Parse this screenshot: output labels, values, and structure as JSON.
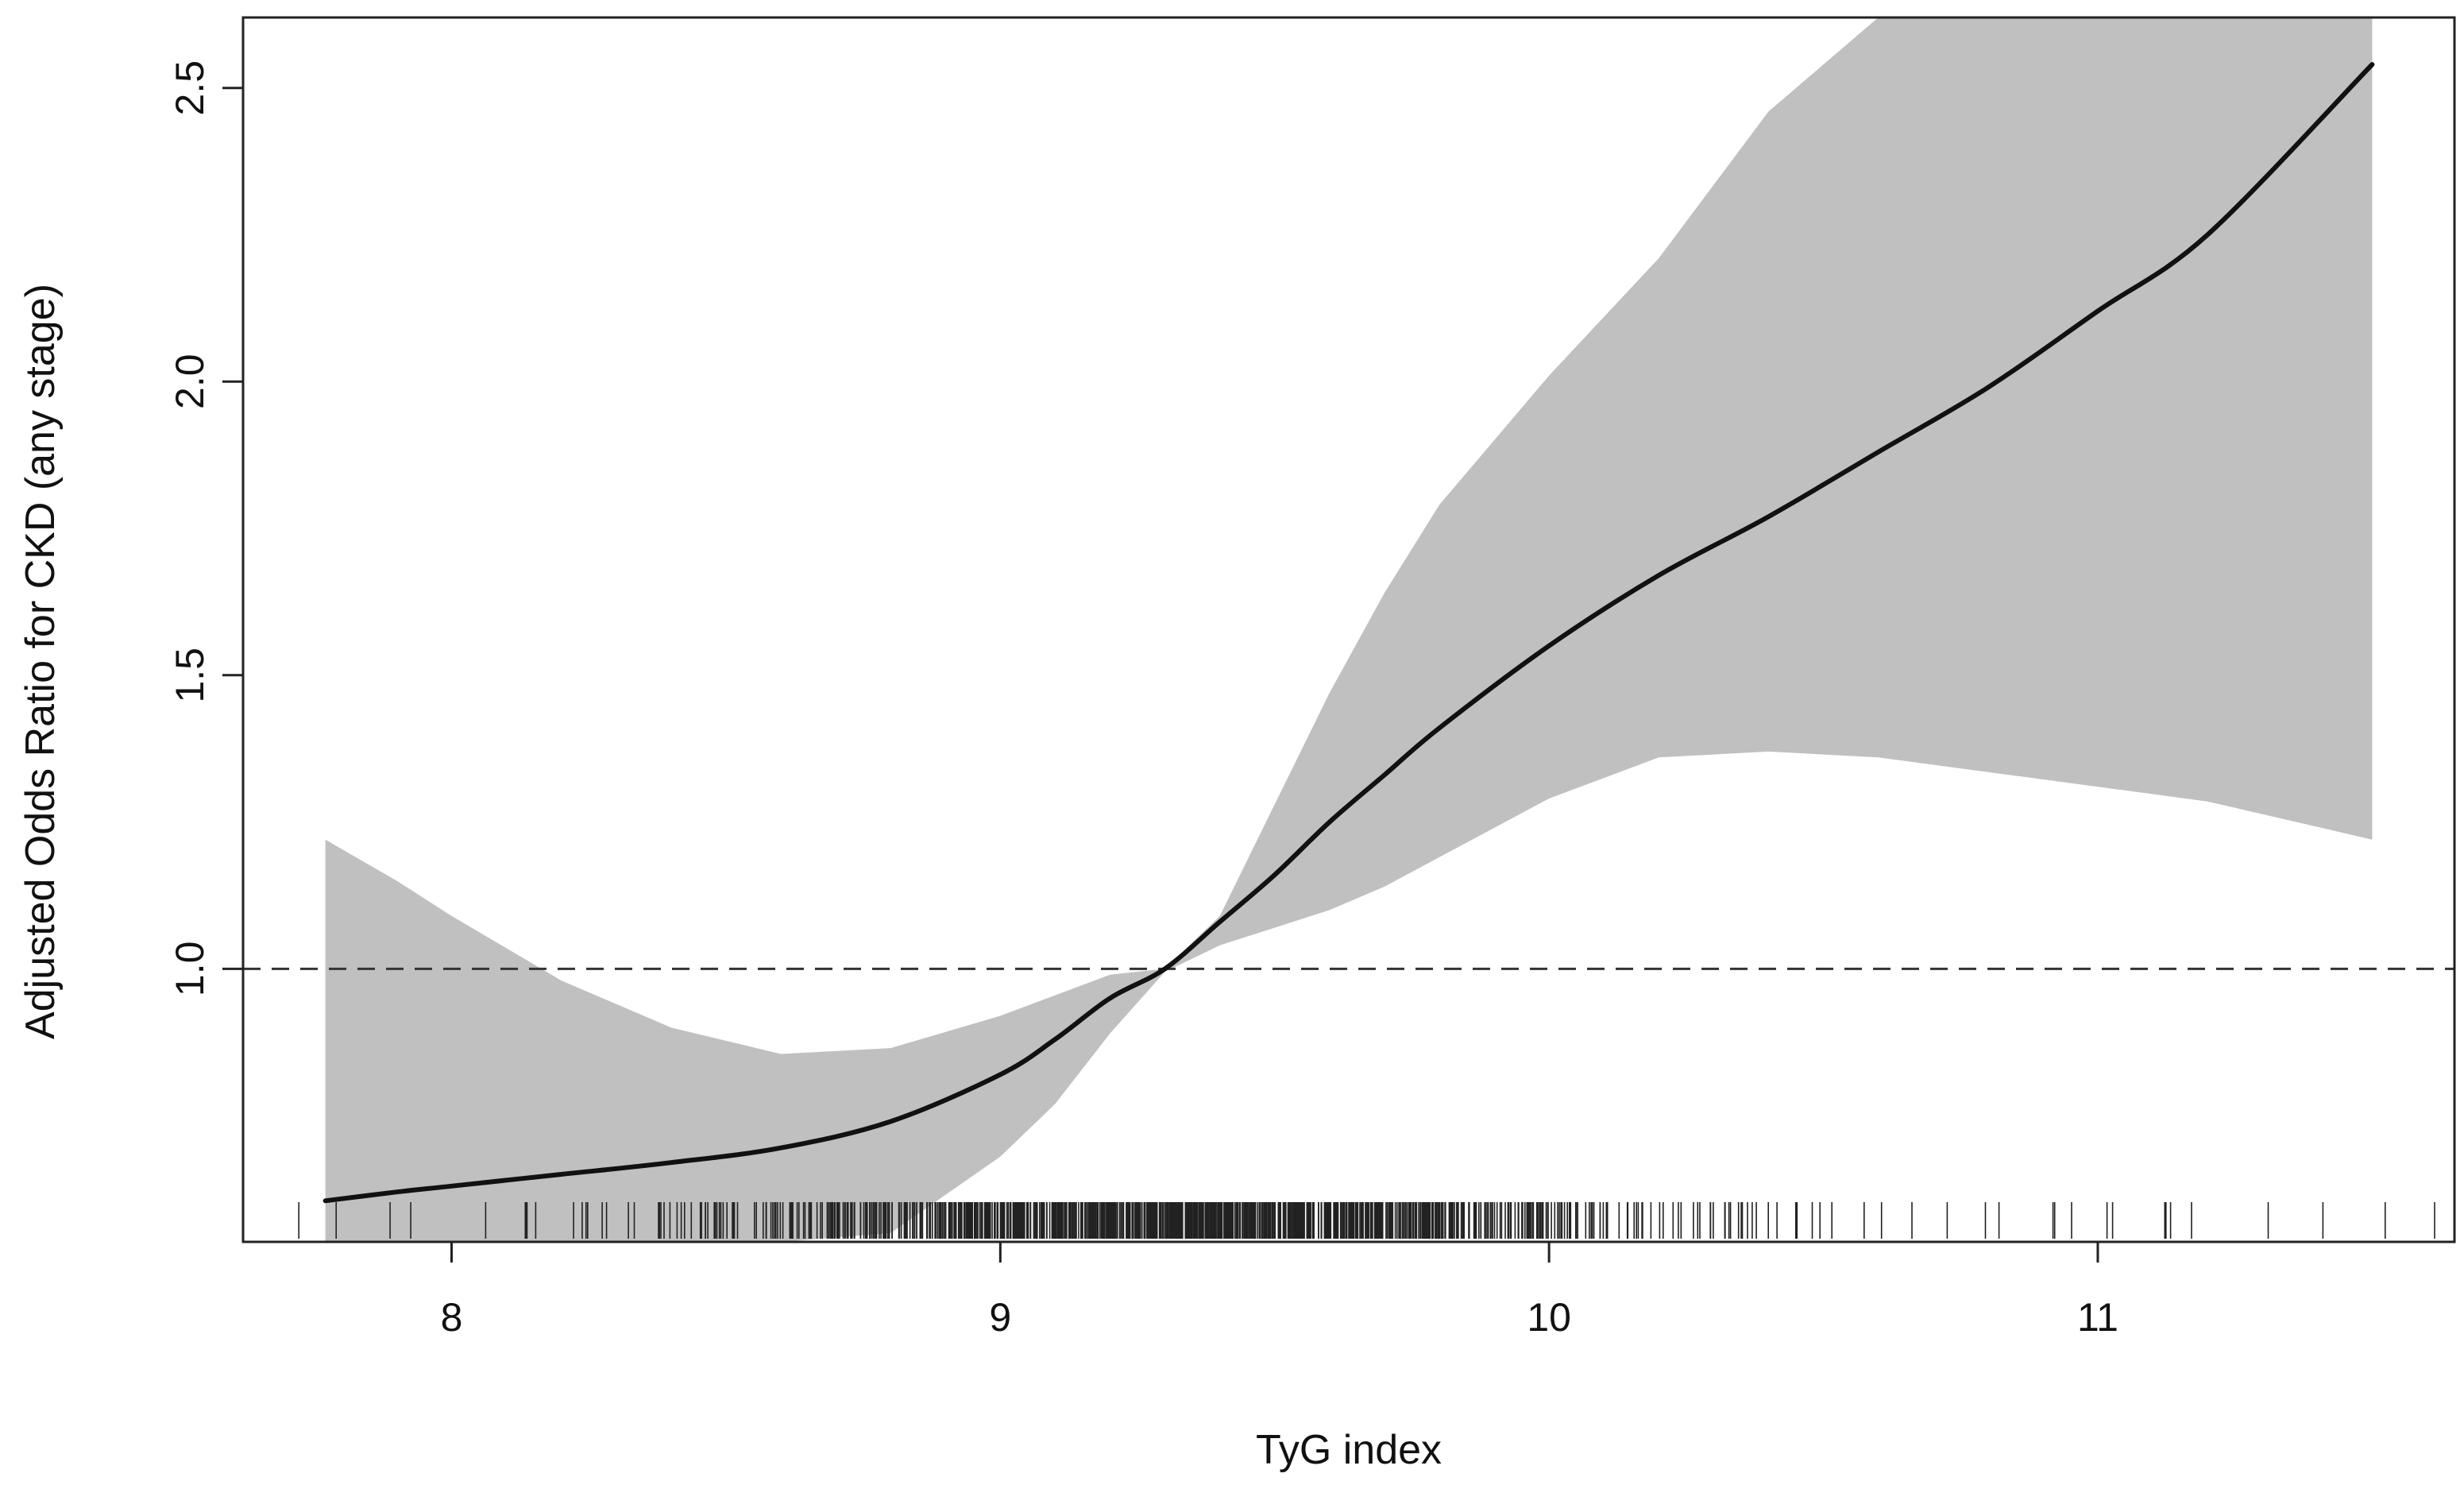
{
  "chart_data": {
    "type": "line",
    "xlabel": "TyG index",
    "ylabel": "Adjusted Odds Ratio for CKD (any stage)",
    "xlim": [
      7.62,
      11.65
    ],
    "ylim": [
      0.535,
      2.62
    ],
    "x_ticks": [
      8,
      9,
      10,
      11
    ],
    "y_ticks": [
      1.0,
      1.5,
      2.0,
      2.5
    ],
    "x_tick_labels": [
      "8",
      "9",
      "10",
      "11"
    ],
    "y_tick_labels": [
      "1.0",
      "1.5",
      "2.0",
      "2.5"
    ],
    "reference_line": {
      "y": 1.0,
      "style": "dashed"
    },
    "series": [
      {
        "x": [
          7.77,
          7.9,
          8.0,
          8.2,
          8.4,
          8.6,
          8.8,
          9.0,
          9.1,
          9.2,
          9.3,
          9.4,
          9.5,
          9.6,
          9.7,
          9.8,
          10.0,
          10.2,
          10.4,
          10.6,
          10.8,
          11.0,
          11.2,
          11.5
        ],
        "values": [
          0.605,
          0.62,
          0.63,
          0.65,
          0.67,
          0.695,
          0.74,
          0.82,
          0.88,
          0.95,
          1.0,
          1.08,
          1.16,
          1.25,
          1.33,
          1.41,
          1.55,
          1.67,
          1.77,
          1.88,
          1.99,
          2.12,
          2.25,
          2.54
        ]
      }
    ],
    "confidence_band": {
      "x": [
        7.77,
        7.9,
        8.0,
        8.2,
        8.4,
        8.6,
        8.8,
        9.0,
        9.1,
        9.2,
        9.3,
        9.4,
        9.5,
        9.6,
        9.7,
        9.8,
        10.0,
        10.2,
        10.4,
        10.6,
        10.8,
        11.0,
        11.2,
        11.5
      ],
      "upper": [
        1.22,
        1.15,
        1.09,
        0.98,
        0.9,
        0.855,
        0.865,
        0.92,
        0.955,
        0.99,
        1.0,
        1.09,
        1.28,
        1.47,
        1.64,
        1.79,
        2.01,
        2.21,
        2.46,
        2.62,
        2.62,
        2.62,
        2.62,
        2.62
      ],
      "lower": [
        0.535,
        0.535,
        0.535,
        0.535,
        0.535,
        0.535,
        0.55,
        0.68,
        0.77,
        0.89,
        0.995,
        1.04,
        1.07,
        1.1,
        1.14,
        1.19,
        1.29,
        1.36,
        1.37,
        1.36,
        1.335,
        1.31,
        1.285,
        1.22
      ]
    },
    "band_color": "#c0c0c0",
    "line_color": "#111111",
    "rug": {
      "min": 7.7,
      "max": 11.63,
      "center": 9.35,
      "spread": 0.42,
      "count": 1100
    },
    "grid": false,
    "legend": "none"
  }
}
